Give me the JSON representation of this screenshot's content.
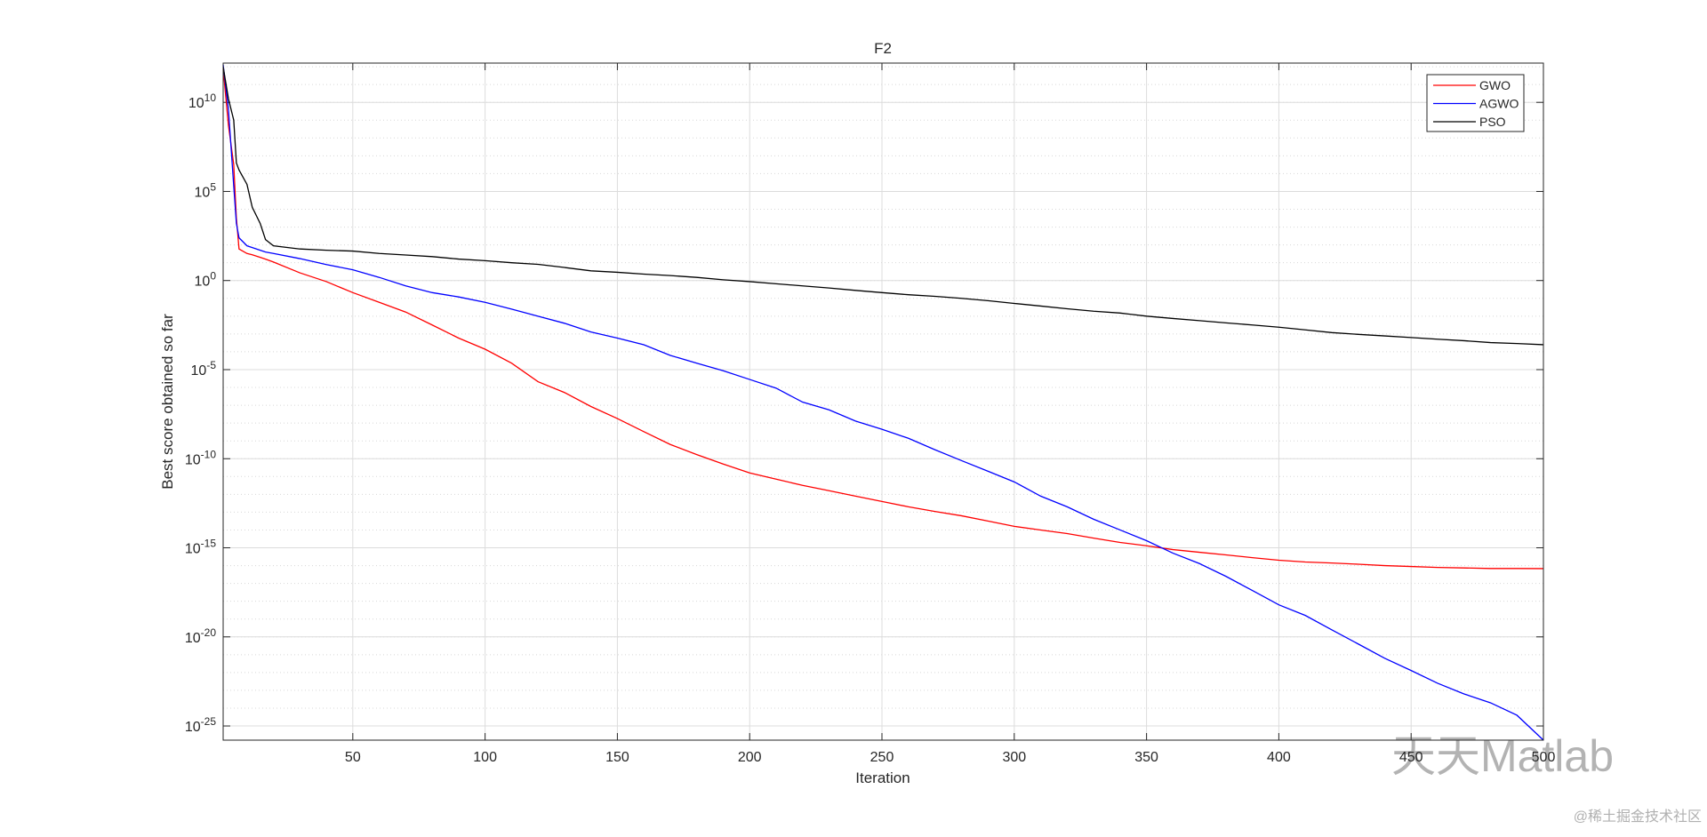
{
  "chart_data": {
    "type": "line",
    "title": "F2",
    "x_label": "Iteration",
    "y_label": "Best score obtained so far",
    "x": [
      1,
      3,
      5,
      6,
      7,
      10,
      12,
      15,
      17,
      20,
      30,
      40,
      50,
      60,
      70,
      80,
      90,
      100,
      110,
      120,
      130,
      140,
      150,
      160,
      170,
      180,
      190,
      200,
      210,
      220,
      230,
      240,
      250,
      260,
      270,
      280,
      290,
      300,
      310,
      320,
      330,
      340,
      350,
      360,
      370,
      380,
      390,
      400,
      410,
      420,
      430,
      440,
      450,
      460,
      470,
      480,
      490,
      500
    ],
    "series": [
      {
        "name": "GWO",
        "color": "#ff0000",
        "values": [
          790000000000.0,
          500000000.0,
          3200000.0,
          3200.0,
          59,
          33,
          28,
          20,
          16,
          11,
          2.7,
          0.87,
          0.21,
          0.06,
          0.017,
          0.0032,
          0.00059,
          0.00014,
          2.3e-05,
          2.1e-06,
          5.2e-07,
          8.5e-08,
          1.8e-08,
          3.3e-09,
          6.3e-10,
          1.7e-10,
          5e-11,
          1.6e-11,
          7.1e-12,
          3.2e-12,
          1.6e-12,
          7.9e-13,
          4e-13,
          2e-13,
          1.1e-13,
          6.3e-14,
          3.2e-14,
          1.6e-14,
          1e-14,
          6.3e-15,
          3.5e-15,
          2e-15,
          1.3e-15,
          7.9e-16,
          5.6e-16,
          4e-16,
          2.8e-16,
          2e-16,
          1.6e-16,
          1.4e-16,
          1.2e-16,
          1e-16,
          8.9e-17,
          7.9e-17,
          7.4e-17,
          6.9e-17,
          6.9e-17,
          6.8e-17
        ]
      },
      {
        "name": "AGWO",
        "color": "#0000ff",
        "values": [
          1300000000000.0,
          4000000000.0,
          200000.0,
          1600.0,
          250,
          89,
          71,
          50,
          40,
          33,
          17,
          7.9,
          4,
          1.5,
          0.5,
          0.21,
          0.12,
          0.06,
          0.025,
          0.01,
          0.004,
          0.0013,
          0.00059,
          0.00025,
          6.3e-05,
          2.3e-05,
          8.7e-06,
          2.8e-06,
          9.1e-07,
          1.5e-07,
          5.5e-08,
          1.3e-08,
          4.5e-09,
          1.4e-09,
          3.2e-10,
          7.9e-11,
          2e-11,
          5e-12,
          7.9e-13,
          2e-13,
          4e-14,
          1e-14,
          2.5e-15,
          5e-16,
          1.3e-16,
          2.5e-17,
          4e-18,
          6.3e-19,
          1.6e-19,
          2.5e-20,
          4e-21,
          6.3e-22,
          1.3e-22,
          2.5e-23,
          6.3e-24,
          2e-24,
          4e-25,
          1.6e-26
        ]
      },
      {
        "name": "PSO",
        "color": "#000000",
        "values": [
          1000000000000.0,
          16000000000.0,
          1000000000.0,
          4000000.0,
          1600000.0,
          250000.0,
          13000.0,
          1600.0,
          200,
          89,
          59,
          50,
          45,
          33,
          27,
          22,
          16,
          13,
          10,
          8.1,
          5.4,
          3.5,
          2.9,
          2.3,
          1.9,
          1.5,
          1.1,
          0.87,
          0.66,
          0.5,
          0.38,
          0.28,
          0.21,
          0.16,
          0.13,
          0.1,
          0.074,
          0.052,
          0.037,
          0.026,
          0.019,
          0.015,
          0.01,
          0.0074,
          0.0056,
          0.0042,
          0.0032,
          0.0024,
          0.0017,
          0.0012,
          0.00095,
          0.00078,
          0.00063,
          0.00051,
          0.00042,
          0.00033,
          0.00029,
          0.00025
        ]
      }
    ],
    "xlim": [
      1,
      500
    ],
    "xticks": [
      50,
      100,
      150,
      200,
      250,
      300,
      350,
      400,
      450,
      500
    ],
    "ylim": [
      1.6e-26,
      1600000000000.0
    ],
    "ylog": true,
    "yticks": [
      {
        "value": 1e-25,
        "label": "10^-25"
      },
      {
        "value": 1e-20,
        "label": "10^-20"
      },
      {
        "value": 1e-15,
        "label": "10^-15"
      },
      {
        "value": 1e-10,
        "label": "10^-10"
      },
      {
        "value": 1e-05,
        "label": "10^-5"
      },
      {
        "value": 1,
        "label": "10^0"
      },
      {
        "value": 100000.0,
        "label": "10^5"
      },
      {
        "value": 10000000000.0,
        "label": "10^10"
      }
    ],
    "grid": true,
    "minor_grid": true,
    "legend": "northeast"
  },
  "watermark": {
    "logo": "天天Matlab",
    "credit": "@稀土掘金技术社区"
  }
}
